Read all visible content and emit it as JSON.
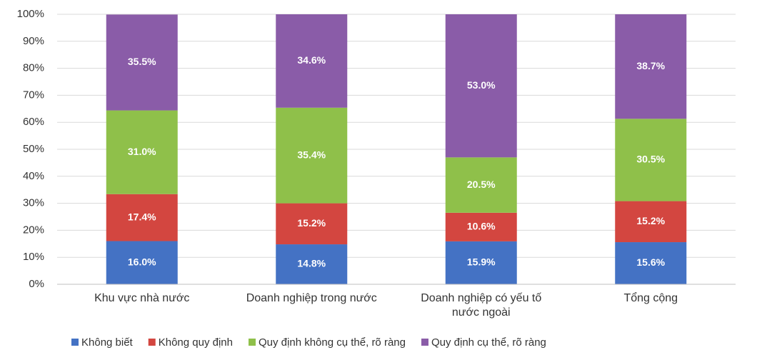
{
  "chart_data": {
    "type": "stacked_bar",
    "categories": [
      "Khu vực nhà nước",
      "Doanh nghiệp trong nước",
      "Doanh nghiệp có yếu tố nước ngoài",
      "Tổng cộng"
    ],
    "series": [
      {
        "name": "Không biết",
        "color": "#4472c4",
        "values": [
          16.0,
          14.8,
          15.9,
          15.6
        ],
        "value_labels": [
          "16.0%",
          "14.8%",
          "15.9%",
          "15.6%"
        ]
      },
      {
        "name": "Không quy định",
        "color": "#d34640",
        "values": [
          17.4,
          15.2,
          10.6,
          15.2
        ],
        "value_labels": [
          "17.4%",
          "15.2%",
          "10.6%",
          "15.2%"
        ]
      },
      {
        "name": "Quy định không cụ thể, rõ ràng",
        "color": "#8fc04a",
        "values": [
          31.0,
          35.4,
          20.5,
          30.5
        ],
        "value_labels": [
          "31.0%",
          "35.4%",
          "20.5%",
          "30.5%"
        ]
      },
      {
        "name": "Quy định cụ thể, rõ ràng",
        "color": "#8a5ca8",
        "values": [
          35.5,
          34.6,
          53.0,
          38.7
        ],
        "value_labels": [
          "35.5%",
          "34.6%",
          "53.0%",
          "38.7%"
        ]
      }
    ],
    "ylim": [
      0,
      100
    ],
    "yticks": [
      {
        "value": 0,
        "label": "0%"
      },
      {
        "value": 10,
        "label": "10%"
      },
      {
        "value": 20,
        "label": "20%"
      },
      {
        "value": 30,
        "label": "30%"
      },
      {
        "value": 40,
        "label": "40%"
      },
      {
        "value": 50,
        "label": "50%"
      },
      {
        "value": 60,
        "label": "60%"
      },
      {
        "value": 70,
        "label": "70%"
      },
      {
        "value": 80,
        "label": "80%"
      },
      {
        "value": 90,
        "label": "90%"
      },
      {
        "value": 100,
        "label": "100%"
      }
    ],
    "grid": true,
    "legend": "bottom"
  }
}
